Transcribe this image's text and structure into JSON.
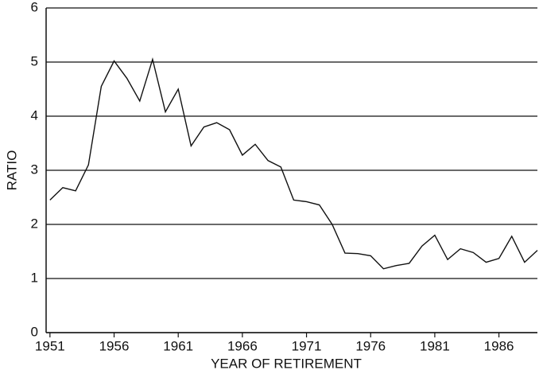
{
  "chart_data": {
    "type": "line",
    "xlabel": "YEAR OF RETIREMENT",
    "ylabel": "RATIO",
    "x": [
      1951,
      1952,
      1953,
      1954,
      1955,
      1956,
      1957,
      1958,
      1959,
      1960,
      1961,
      1962,
      1963,
      1964,
      1965,
      1966,
      1967,
      1968,
      1969,
      1970,
      1971,
      1972,
      1973,
      1974,
      1975,
      1976,
      1977,
      1978,
      1979,
      1980,
      1981,
      1982,
      1983,
      1984,
      1985,
      1986,
      1987,
      1988,
      1989
    ],
    "values": [
      2.45,
      2.68,
      2.62,
      3.1,
      4.55,
      5.02,
      4.7,
      4.28,
      5.05,
      4.08,
      4.5,
      3.45,
      3.8,
      3.88,
      3.75,
      3.28,
      3.48,
      3.18,
      3.06,
      2.45,
      2.42,
      2.36,
      2.0,
      1.47,
      1.46,
      1.42,
      1.18,
      1.24,
      1.28,
      1.6,
      1.8,
      1.35,
      1.55,
      1.48,
      1.3,
      1.37,
      1.78,
      1.3,
      1.52
    ],
    "color": "#111111",
    "xlim": [
      1950.7,
      1989
    ],
    "xticks": [
      1951,
      1956,
      1961,
      1966,
      1971,
      1976,
      1981,
      1986
    ],
    "ylim": [
      0,
      6
    ],
    "yticks": [
      0,
      1,
      2,
      3,
      4,
      5,
      6
    ],
    "grid": true
  }
}
